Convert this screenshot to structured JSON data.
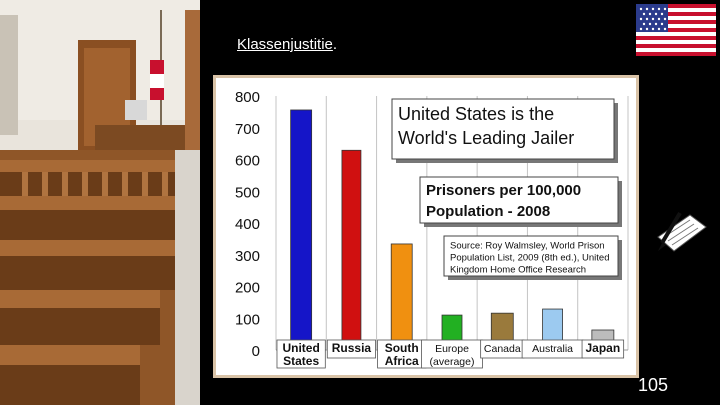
{
  "slide": {
    "heading": "Klassenjustitie",
    "heading_suffix": ".",
    "page_number": "105"
  },
  "colors": {
    "background": "#000000",
    "frame_border": "#d9c3a7"
  },
  "icons": {
    "left_image": "courtroom-photo-icon",
    "flag": "us-flag-icon",
    "pen": "pen-writing-icon"
  },
  "chart_data": {
    "type": "bar",
    "title": "United States is the World's Leading Jailer",
    "title_lines": [
      "United States is the",
      "World's Leading Jailer"
    ],
    "subtitle_lines": [
      "Prisoners per 100,000",
      "Population - 2008"
    ],
    "source_lines": [
      "Source: Roy Walmsley, World Prison",
      "Population List, 2009 (8th ed.), United",
      "Kingdom Home Office Research"
    ],
    "categories": [
      {
        "lines": [
          "United",
          "States"
        ]
      },
      {
        "lines": [
          "Russia"
        ]
      },
      {
        "lines": [
          "South",
          "Africa"
        ]
      },
      {
        "lines": [
          "Europe",
          "(average)"
        ]
      },
      {
        "lines": [
          "Canada"
        ]
      },
      {
        "lines": [
          "Australia"
        ]
      },
      {
        "lines": [
          "Japan"
        ]
      }
    ],
    "values": [
      756,
      629,
      334,
      110,
      116,
      129,
      63
    ],
    "bar_colors": [
      "#1515c8",
      "#d01010",
      "#f09010",
      "#22b022",
      "#9a7a3c",
      "#9ccaf0",
      "#bcbcbc"
    ],
    "yticks": [
      0,
      100,
      200,
      300,
      400,
      500,
      600,
      700,
      800
    ],
    "ylim": [
      0,
      800
    ],
    "xlabel": "",
    "ylabel": "",
    "grid": "vertical"
  }
}
